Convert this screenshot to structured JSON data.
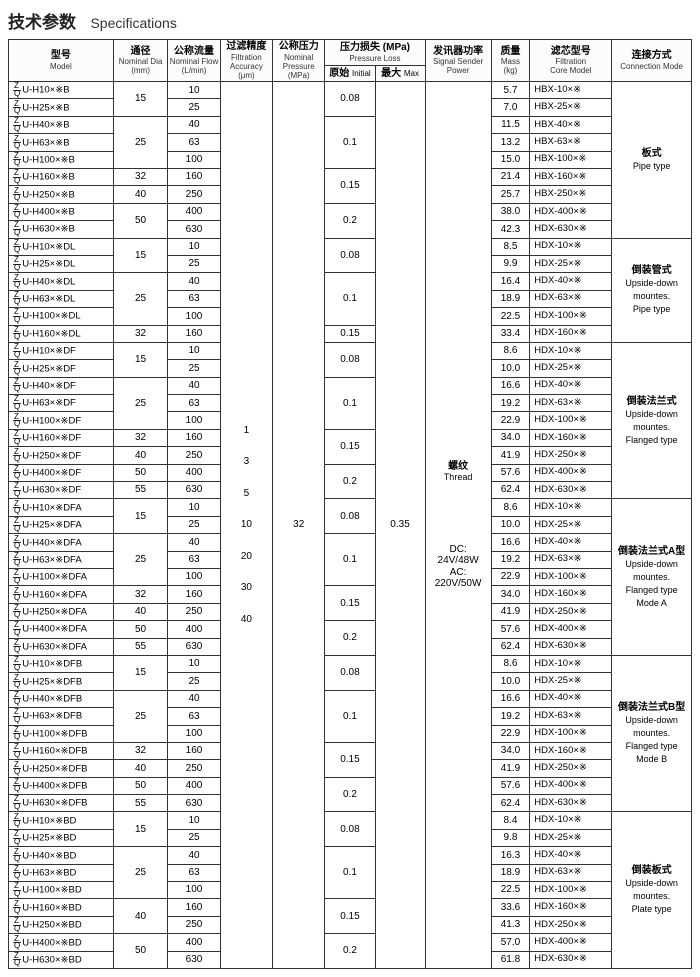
{
  "title_cn": "技术参数",
  "title_en": "Specifications",
  "headers": {
    "model_cn": "型号",
    "model_en": "Model",
    "dia_cn": "通径",
    "dia_en1": "Nominal Dia",
    "dia_en2": "(mm)",
    "flow_cn": "公称流量",
    "flow_en1": "Nominal Flow",
    "flow_en2": "(L/min)",
    "acc_cn": "过滤精度",
    "acc_en1": "Filtration Accuracy",
    "acc_en2": "(μm)",
    "np_cn": "公称压力",
    "np_en1": "Nominal Pressure",
    "np_en2": "(MPa)",
    "pl_cn": "压力损失 (MPa)",
    "pl_en": "Pressure Loss",
    "pl_init_cn": "原始",
    "pl_init_en": "Initial",
    "pl_max_cn": "最大",
    "pl_max_en": "Max",
    "sig_cn": "发讯器功率",
    "sig_en1": "Signal Sender",
    "sig_en2": "Power",
    "mass_cn": "质量",
    "mass_en1": "Mass",
    "mass_en2": "(kg)",
    "core_cn": "滤芯型号",
    "core_en1": "Filtration",
    "core_en2": "Core Model",
    "conn_cn": "连接方式",
    "conn_en": "Connection Mode"
  },
  "accuracy_list": [
    "1",
    "3",
    "5",
    "10",
    "20",
    "30",
    "40"
  ],
  "nominal_pressure": "32",
  "pl_max": "0.35",
  "signal_txt": [
    "DC:",
    "24V/48W",
    "AC:",
    "220V/50W"
  ],
  "thread_cn": "螺纹",
  "thread_en": "Thread",
  "groups": [
    {
      "suffix": "B",
      "core_prefix": "HBX",
      "conn": [
        "板式",
        "Pipe type"
      ],
      "rows": [
        {
          "m": "U-H10×※B",
          "d": "15",
          "f": "10",
          "pl": "0.08",
          "mass": "5.7",
          "core": "HBX-10×※",
          "dspan": 2,
          "plspan": 2
        },
        {
          "m": "U-H25×※B",
          "f": "25",
          "mass": "7.0",
          "core": "HBX-25×※"
        },
        {
          "m": "U-H40×※B",
          "d": "25",
          "f": "40",
          "pl": "0.1",
          "mass": "11.5",
          "core": "HBX-40×※",
          "dspan": 3,
          "plspan": 3
        },
        {
          "m": "U-H63×※B",
          "f": "63",
          "mass": "13.2",
          "core": "HBX-63×※"
        },
        {
          "m": "U-H100×※B",
          "f": "100",
          "mass": "15.0",
          "core": "HBX-100×※"
        },
        {
          "m": "U-H160×※B",
          "d": "32",
          "f": "160",
          "pl": "0.15",
          "mass": "21.4",
          "core": "HBX-160×※",
          "dspan": 1,
          "plspan": 2
        },
        {
          "m": "U-H250×※B",
          "d": "40",
          "f": "250",
          "mass": "25.7",
          "core": "HBX-250×※",
          "dspan": 1
        },
        {
          "m": "U-H400×※B",
          "d": "50",
          "f": "400",
          "pl": "0.2",
          "mass": "38.0",
          "core": "HDX-400×※",
          "dspan": 2,
          "plspan": 2
        },
        {
          "m": "U-H630×※B",
          "f": "630",
          "mass": "42.3",
          "core": "HDX-630×※"
        }
      ]
    },
    {
      "suffix": "DL",
      "conn": [
        "倒装管式",
        "Upside-down",
        "mountes.",
        "Pipe type"
      ],
      "rows": [
        {
          "m": "U-H10×※DL",
          "d": "15",
          "f": "10",
          "pl": "0.08",
          "mass": "8.5",
          "core": "HDX-10×※",
          "dspan": 2,
          "plspan": 2
        },
        {
          "m": "U-H25×※DL",
          "f": "25",
          "mass": "9.9",
          "core": "HDX-25×※"
        },
        {
          "m": "U-H40×※DL",
          "d": "25",
          "f": "40",
          "pl": "0.1",
          "mass": "16.4",
          "core": "HDX-40×※",
          "dspan": 3,
          "plspan": 3
        },
        {
          "m": "U-H63×※DL",
          "f": "63",
          "mass": "18.9",
          "core": "HDX-63×※"
        },
        {
          "m": "U-H100×※DL",
          "f": "100",
          "mass": "22.5",
          "core": "HDX-100×※"
        },
        {
          "m": "U-H160×※DL",
          "d": "32",
          "f": "160",
          "pl": "0.15",
          "mass": "33.4",
          "core": "HDX-160×※",
          "dspan": 1,
          "plspan": 1
        }
      ]
    },
    {
      "suffix": "DF",
      "conn": [
        "倒装法兰式",
        "Upside-down",
        "mountes.",
        "Flanged type"
      ],
      "rows": [
        {
          "m": "U-H10×※DF",
          "d": "15",
          "f": "10",
          "pl": "0.08",
          "mass": "8.6",
          "core": "HDX-10×※",
          "dspan": 2,
          "plspan": 2
        },
        {
          "m": "U-H25×※DF",
          "f": "25",
          "mass": "10.0",
          "core": "HDX-25×※"
        },
        {
          "m": "U-H40×※DF",
          "d": "25",
          "f": "40",
          "pl": "0.1",
          "mass": "16.6",
          "core": "HDX-40×※",
          "dspan": 3,
          "plspan": 3
        },
        {
          "m": "U-H63×※DF",
          "f": "63",
          "mass": "19.2",
          "core": "HDX-63×※"
        },
        {
          "m": "U-H100×※DF",
          "f": "100",
          "mass": "22.9",
          "core": "HDX-100×※"
        },
        {
          "m": "U-H160×※DF",
          "d": "32",
          "f": "160",
          "pl": "0.15",
          "mass": "34.0",
          "core": "HDX-160×※",
          "dspan": 1,
          "plspan": 2
        },
        {
          "m": "U-H250×※DF",
          "d": "40",
          "f": "250",
          "mass": "41.9",
          "core": "HDX-250×※",
          "dspan": 1
        },
        {
          "m": "U-H400×※DF",
          "d": "50",
          "f": "400",
          "pl": "0.2",
          "mass": "57.6",
          "core": "HDX-400×※",
          "dspan": 1,
          "plspan": 2
        },
        {
          "m": "U-H630×※DF",
          "d": "55",
          "f": "630",
          "mass": "62.4",
          "core": "HDX-630×※",
          "dspan": 1
        }
      ]
    },
    {
      "suffix": "DFA",
      "conn": [
        "倒装法兰式A型",
        "Upside-down",
        "mountes.",
        "Flanged type",
        "Mode A"
      ],
      "rows": [
        {
          "m": "U-H10×※DFA",
          "d": "15",
          "f": "10",
          "pl": "0.08",
          "mass": "8.6",
          "core": "HDX-10×※",
          "dspan": 2,
          "plspan": 2
        },
        {
          "m": "U-H25×※DFA",
          "f": "25",
          "mass": "10.0",
          "core": "HDX-25×※"
        },
        {
          "m": "U-H40×※DFA",
          "d": "25",
          "f": "40",
          "pl": "0.1",
          "mass": "16.6",
          "core": "HDX-40×※",
          "dspan": 3,
          "plspan": 3
        },
        {
          "m": "U-H63×※DFA",
          "f": "63",
          "mass": "19.2",
          "core": "HDX-63×※"
        },
        {
          "m": "U-H100×※DFA",
          "f": "100",
          "mass": "22.9",
          "core": "HDX-100×※"
        },
        {
          "m": "U-H160×※DFA",
          "d": "32",
          "f": "160",
          "pl": "0.15",
          "mass": "34.0",
          "core": "HDX-160×※",
          "dspan": 1,
          "plspan": 2
        },
        {
          "m": "U-H250×※DFA",
          "d": "40",
          "f": "250",
          "mass": "41.9",
          "core": "HDX-250×※",
          "dspan": 1
        },
        {
          "m": "U-H400×※DFA",
          "d": "50",
          "f": "400",
          "pl": "0.2",
          "mass": "57.6",
          "core": "HDX-400×※",
          "dspan": 1,
          "plspan": 2
        },
        {
          "m": "U-H630×※DFA",
          "d": "55",
          "f": "630",
          "mass": "62.4",
          "core": "HDX-630×※",
          "dspan": 1
        }
      ]
    },
    {
      "suffix": "DFB",
      "conn": [
        "倒装法兰式B型",
        "Upside-down",
        "mountes.",
        "Flanged type",
        "Mode B"
      ],
      "rows": [
        {
          "m": "U-H10×※DFB",
          "d": "15",
          "f": "10",
          "pl": "0.08",
          "mass": "8.6",
          "core": "HDX-10×※",
          "dspan": 2,
          "plspan": 2
        },
        {
          "m": "U-H25×※DFB",
          "f": "25",
          "mass": "10.0",
          "core": "HDX-25×※"
        },
        {
          "m": "U-H40×※DFB",
          "d": "25",
          "f": "40",
          "pl": "0.1",
          "mass": "16.6",
          "core": "HDX-40×※",
          "dspan": 3,
          "plspan": 3
        },
        {
          "m": "U-H63×※DFB",
          "f": "63",
          "mass": "19.2",
          "core": "HDX-63×※"
        },
        {
          "m": "U-H100×※DFB",
          "f": "100",
          "mass": "22.9",
          "core": "HDX-100×※"
        },
        {
          "m": "U-H160×※DFB",
          "d": "32",
          "f": "160",
          "pl": "0.15",
          "mass": "34.0",
          "core": "HDX-160×※",
          "dspan": 1,
          "plspan": 2
        },
        {
          "m": "U-H250×※DFB",
          "d": "40",
          "f": "250",
          "mass": "41.9",
          "core": "HDX-250×※",
          "dspan": 1
        },
        {
          "m": "U-H400×※DFB",
          "d": "50",
          "f": "400",
          "pl": "0.2",
          "mass": "57.6",
          "core": "HDX-400×※",
          "dspan": 1,
          "plspan": 2
        },
        {
          "m": "U-H630×※DFB",
          "d": "55",
          "f": "630",
          "mass": "62.4",
          "core": "HDX-630×※",
          "dspan": 1
        }
      ]
    },
    {
      "suffix": "BD",
      "conn": [
        "倒装板式",
        "Upside-down",
        "mountes.",
        "Plate type"
      ],
      "rows": [
        {
          "m": "U-H10×※BD",
          "d": "15",
          "f": "10",
          "pl": "0.08",
          "mass": "8.4",
          "core": "HDX-10×※",
          "dspan": 2,
          "plspan": 2
        },
        {
          "m": "U-H25×※BD",
          "f": "25",
          "mass": "9.8",
          "core": "HDX-25×※"
        },
        {
          "m": "U-H40×※BD",
          "d": "25",
          "f": "40",
          "pl": "0.1",
          "mass": "16.3",
          "core": "HDX-40×※",
          "dspan": 3,
          "plspan": 3
        },
        {
          "m": "U-H63×※BD",
          "f": "63",
          "mass": "18.9",
          "core": "HDX-63×※"
        },
        {
          "m": "U-H100×※BD",
          "f": "100",
          "mass": "22.5",
          "core": "HDX-100×※"
        },
        {
          "m": "U-H160×※BD",
          "d": "40",
          "f": "160",
          "pl": "0.15",
          "mass": "33.6",
          "core": "HDX-160×※",
          "dspan": 2,
          "plspan": 2
        },
        {
          "m": "U-H250×※BD",
          "f": "250",
          "mass": "41.3",
          "core": "HDX-250×※"
        },
        {
          "m": "U-H400×※BD",
          "d": "50",
          "f": "400",
          "pl": "0.2",
          "mass": "57.0",
          "core": "HDX-400×※",
          "dspan": 2,
          "plspan": 2
        },
        {
          "m": "U-H630×※BD",
          "f": "630",
          "mass": "61.8",
          "core": "HDX-630×※"
        }
      ]
    }
  ]
}
